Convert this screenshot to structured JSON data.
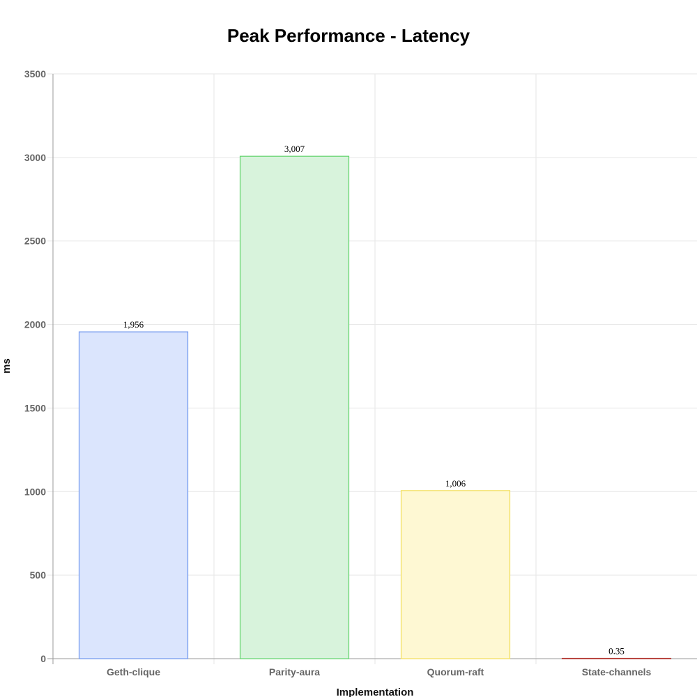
{
  "chart_data": {
    "type": "bar",
    "title": "Peak Performance - Latency",
    "xlabel": "Implementation",
    "ylabel": "ms",
    "categories": [
      "Geth-clique",
      "Parity-aura",
      "Quorum-raft",
      "State-channels"
    ],
    "values": [
      1956,
      3007,
      1006,
      0.35
    ],
    "data_labels": [
      "1,956",
      "3,007",
      "1,006",
      "0.35"
    ],
    "ylim": [
      0,
      3500
    ],
    "yticks": [
      0,
      500,
      1000,
      1500,
      2000,
      2500,
      3000,
      3500
    ],
    "grid": true,
    "legend": "none",
    "colors": {
      "fill": [
        "#dbe5fd",
        "#d8f3dc",
        "#fef8d3",
        "#fde0e0"
      ],
      "stroke": [
        "#6f97ee",
        "#5fd36a",
        "#f2de5a",
        "#b0312a"
      ]
    }
  }
}
